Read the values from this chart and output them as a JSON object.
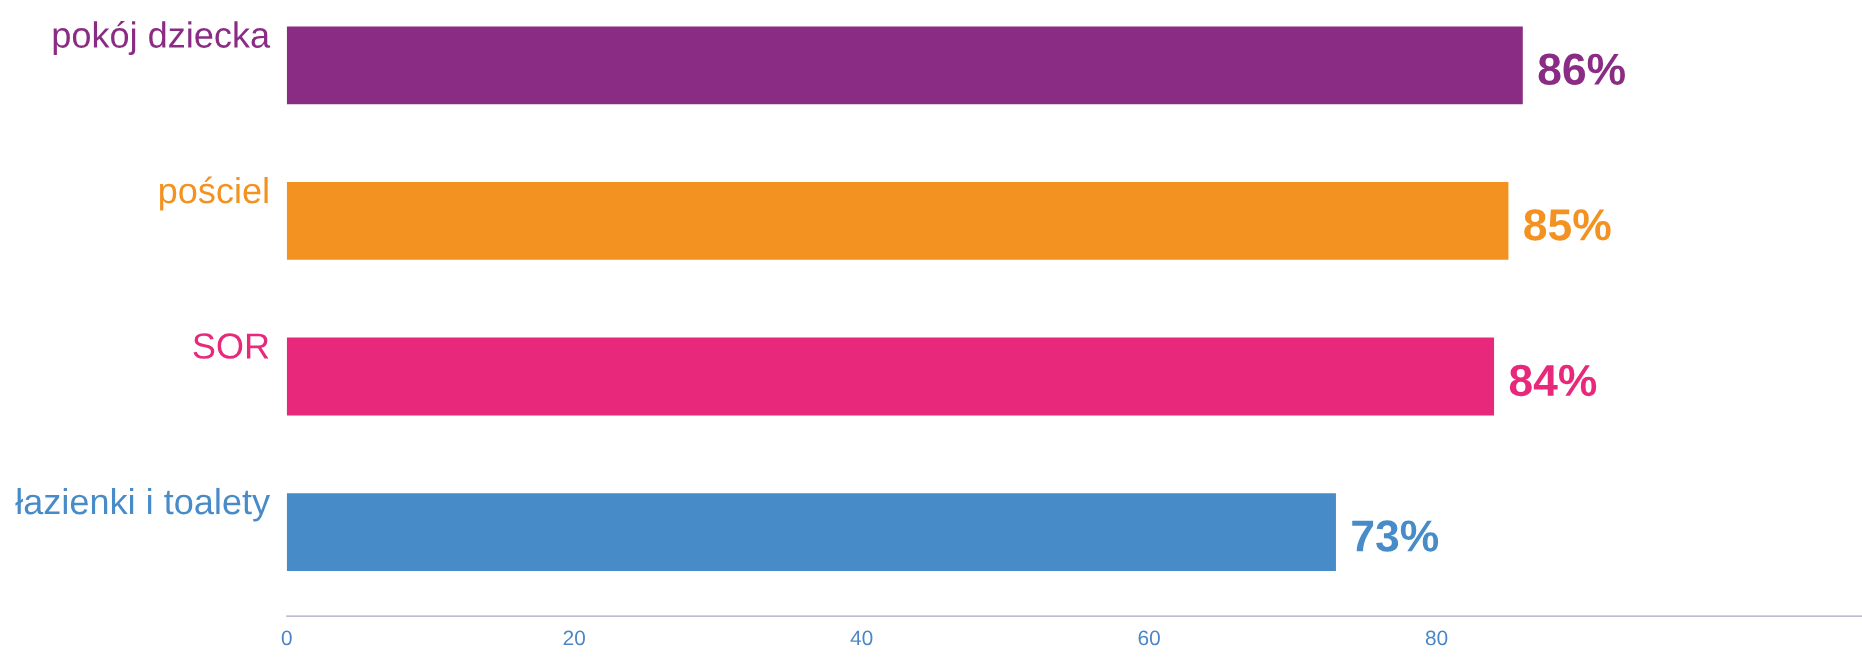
{
  "chart_data": {
    "type": "bar",
    "orientation": "horizontal",
    "categories": [
      "pokój dziecka",
      "pościel",
      "SOR",
      "łazienki i toalety"
    ],
    "values": [
      86,
      85,
      84,
      73
    ],
    "colors": [
      "#8b2c84",
      "#f39220",
      "#e8297b",
      "#478bc8"
    ],
    "value_labels": [
      "86%",
      "85%",
      "84%",
      "73%"
    ],
    "xlim": [
      0,
      109.6
    ],
    "xticks": [
      0,
      20,
      40,
      60,
      80
    ],
    "grid": false,
    "legend": false
  }
}
